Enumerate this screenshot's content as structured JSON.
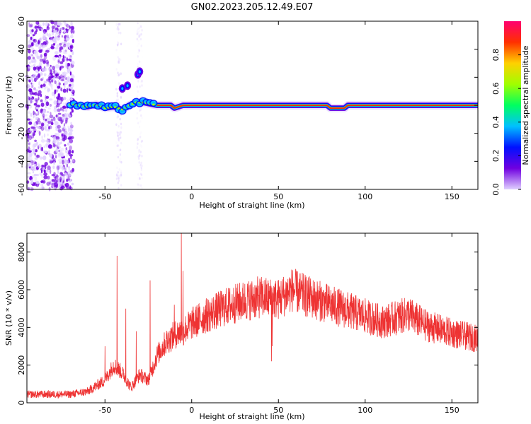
{
  "title": "GN02.2023.205.12.49.E07",
  "chart_data": [
    {
      "type": "heatmap",
      "name": "spectrogram",
      "xlabel": "Height of straight line (km)",
      "ylabel": "Frequency (Hz)",
      "xlim": [
        -95,
        165
      ],
      "ylim": [
        -60,
        60
      ],
      "x_ticks": [
        -50,
        0,
        50,
        100,
        150
      ],
      "y_ticks": [
        -60,
        -40,
        -20,
        0,
        20,
        40,
        60
      ],
      "colorbar": {
        "label": "Normalized spectral amplitude",
        "range": [
          0,
          1
        ],
        "ticks": [
          "0.0",
          "0.2",
          "0.4",
          "0.6",
          "0.8"
        ],
        "colors": [
          "#e0d0ff",
          "#7000e0",
          "#0010ff",
          "#00c0ff",
          "#00ff60",
          "#a0ff00",
          "#ffd000",
          "#ff3000",
          "#ff0070"
        ]
      },
      "line": {
        "description_free": true,
        "frequency_hz": 0,
        "points": [
          [
            -68,
            0.5
          ],
          [
            -60,
            -1
          ],
          [
            -55,
            0.5
          ],
          [
            -50,
            -2
          ],
          [
            -45,
            -1
          ],
          [
            -40,
            -3
          ],
          [
            -36,
            0
          ],
          [
            -32,
            2
          ],
          [
            -28,
            2
          ],
          [
            -20,
            0
          ],
          [
            -12,
            0
          ],
          [
            -10,
            -2
          ],
          [
            -5,
            0
          ],
          [
            0,
            0
          ],
          [
            78,
            0
          ],
          [
            80,
            -2
          ],
          [
            88,
            -2
          ],
          [
            90,
            0
          ],
          [
            165,
            0
          ]
        ],
        "bursts": [
          [
            -40,
            12
          ],
          [
            -37,
            14
          ],
          [
            -31,
            22
          ],
          [
            -30,
            24
          ]
        ]
      }
    },
    {
      "type": "line",
      "name": "snr",
      "xlabel": "Height of straight line (km)",
      "ylabel": "SNR (10 * v/v)",
      "xlim": [
        -95,
        165
      ],
      "ylim": [
        0,
        9000
      ],
      "x_ticks": [
        -50,
        0,
        50,
        100,
        150
      ],
      "y_ticks": [
        0,
        2000,
        4000,
        6000,
        8000
      ],
      "color": "#ee3333",
      "envelope": [
        [
          -95,
          450
        ],
        [
          -70,
          450
        ],
        [
          -60,
          600
        ],
        [
          -50,
          1200
        ],
        [
          -45,
          2000
        ],
        [
          -40,
          1600
        ],
        [
          -35,
          800
        ],
        [
          -30,
          1500
        ],
        [
          -25,
          1200
        ],
        [
          -20,
          2500
        ],
        [
          -15,
          3200
        ],
        [
          -10,
          3600
        ],
        [
          -5,
          3800
        ],
        [
          0,
          4200
        ],
        [
          10,
          4700
        ],
        [
          20,
          5100
        ],
        [
          30,
          5400
        ],
        [
          40,
          5600
        ],
        [
          50,
          5500
        ],
        [
          58,
          6000
        ],
        [
          65,
          5700
        ],
        [
          80,
          5200
        ],
        [
          100,
          4600
        ],
        [
          110,
          4300
        ],
        [
          125,
          4700
        ],
        [
          135,
          4100
        ],
        [
          150,
          3700
        ],
        [
          165,
          3400
        ]
      ],
      "spikes": [
        [
          -50,
          3000
        ],
        [
          -43,
          7800
        ],
        [
          -38,
          5000
        ],
        [
          -32,
          3800
        ],
        [
          -24,
          6500
        ],
        [
          -10,
          5200
        ],
        [
          -6,
          9000
        ],
        [
          -5,
          7000
        ],
        [
          38,
          6700
        ],
        [
          46,
          2200
        ],
        [
          46.5,
          3000
        ]
      ]
    }
  ]
}
